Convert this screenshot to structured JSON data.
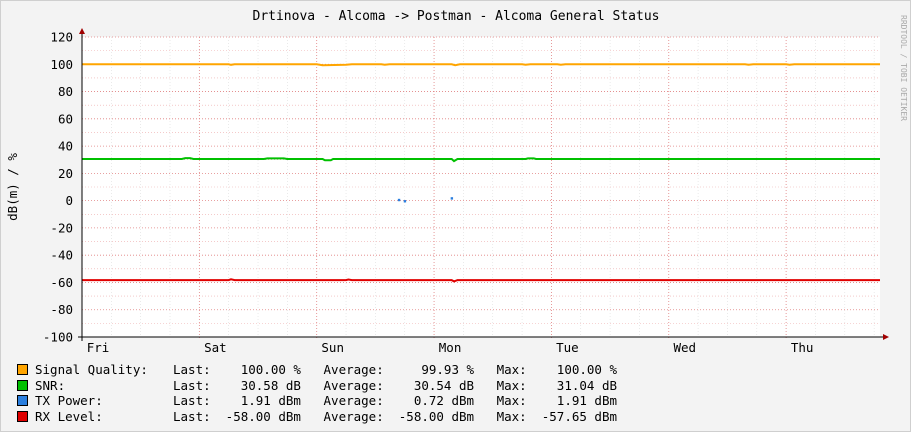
{
  "chart_data": {
    "type": "line",
    "title": "Drtinova - Alcoma -> Postman - Alcoma General Status",
    "ylabel": "dB(m) / %",
    "watermark": "RRDTOOL / TOBI OETIKER",
    "ylim": [
      -100,
      120
    ],
    "y_ticks": [
      "120",
      "100",
      "80",
      "60",
      "40",
      "20",
      "0",
      "-20",
      "-40",
      "-60",
      "-80",
      "-100"
    ],
    "x_ticks": [
      "Fri",
      "Sat",
      "Sun",
      "Mon",
      "Tue",
      "Wed",
      "Thu"
    ],
    "x_range_days": [
      0,
      6.8
    ],
    "series": [
      {
        "name": "Signal Quality",
        "color": "#ffa500",
        "points": [
          [
            0,
            100
          ],
          [
            1.25,
            100
          ],
          [
            1.27,
            99.6
          ],
          [
            1.3,
            100
          ],
          [
            2.0,
            100
          ],
          [
            2.05,
            99.3
          ],
          [
            2.25,
            99.6
          ],
          [
            2.3,
            100
          ],
          [
            2.55,
            100
          ],
          [
            2.58,
            99.6
          ],
          [
            2.62,
            100
          ],
          [
            3.15,
            100
          ],
          [
            3.18,
            99.3
          ],
          [
            3.22,
            100
          ],
          [
            3.75,
            100
          ],
          [
            3.78,
            99.6
          ],
          [
            3.82,
            100
          ],
          [
            4.05,
            100
          ],
          [
            4.08,
            99.6
          ],
          [
            4.12,
            100
          ],
          [
            5.65,
            100
          ],
          [
            5.68,
            99.6
          ],
          [
            5.72,
            100
          ],
          [
            6.0,
            100
          ],
          [
            6.03,
            99.6
          ],
          [
            6.07,
            100
          ],
          [
            6.8,
            100
          ]
        ],
        "legend": {
          "last": "100.00 %",
          "average": "99.93 %",
          "max": "100.00 %"
        }
      },
      {
        "name": "SNR",
        "color": "#00c000",
        "points": [
          [
            0,
            30.5
          ],
          [
            0.85,
            30.5
          ],
          [
            0.88,
            31.2
          ],
          [
            0.92,
            31.2
          ],
          [
            0.95,
            30.5
          ],
          [
            1.55,
            30.5
          ],
          [
            1.58,
            31.0
          ],
          [
            1.72,
            31.0
          ],
          [
            1.75,
            30.5
          ],
          [
            2.05,
            30.5
          ],
          [
            2.07,
            29.6
          ],
          [
            2.12,
            29.6
          ],
          [
            2.14,
            30.5
          ],
          [
            3.15,
            30.5
          ],
          [
            3.17,
            29.0
          ],
          [
            3.2,
            30.5
          ],
          [
            3.78,
            30.5
          ],
          [
            3.8,
            31.0
          ],
          [
            3.85,
            31.0
          ],
          [
            3.87,
            30.5
          ],
          [
            6.8,
            30.5
          ]
        ],
        "legend": {
          "last": "30.58 dB",
          "average": "30.54 dB",
          "max": "31.04 dB"
        }
      },
      {
        "name": "TX Power",
        "color": "#2b7fdf",
        "points": [
          [
            2.7,
            0.6
          ],
          [
            2.75,
            -0.3
          ],
          [
            3.15,
            1.8
          ]
        ],
        "legend": {
          "last": "1.91 dBm",
          "average": "0.72 dBm",
          "max": "1.91 dBm"
        }
      },
      {
        "name": "RX Level",
        "color": "#e00000",
        "points": [
          [
            0,
            -58.3
          ],
          [
            1.25,
            -58.3
          ],
          [
            1.27,
            -57.7
          ],
          [
            1.3,
            -58.3
          ],
          [
            2.25,
            -58.3
          ],
          [
            2.27,
            -57.8
          ],
          [
            2.3,
            -58.3
          ],
          [
            3.15,
            -58.3
          ],
          [
            3.17,
            -59.2
          ],
          [
            3.2,
            -58.3
          ],
          [
            6.8,
            -58.3
          ]
        ],
        "legend": {
          "last": "-58.00 dBm",
          "average": "-58.00 dBm",
          "max": "-57.65 dBm"
        }
      }
    ],
    "legend_labels": {
      "last": "Last:",
      "average": "Average:",
      "max": "Max:"
    }
  }
}
